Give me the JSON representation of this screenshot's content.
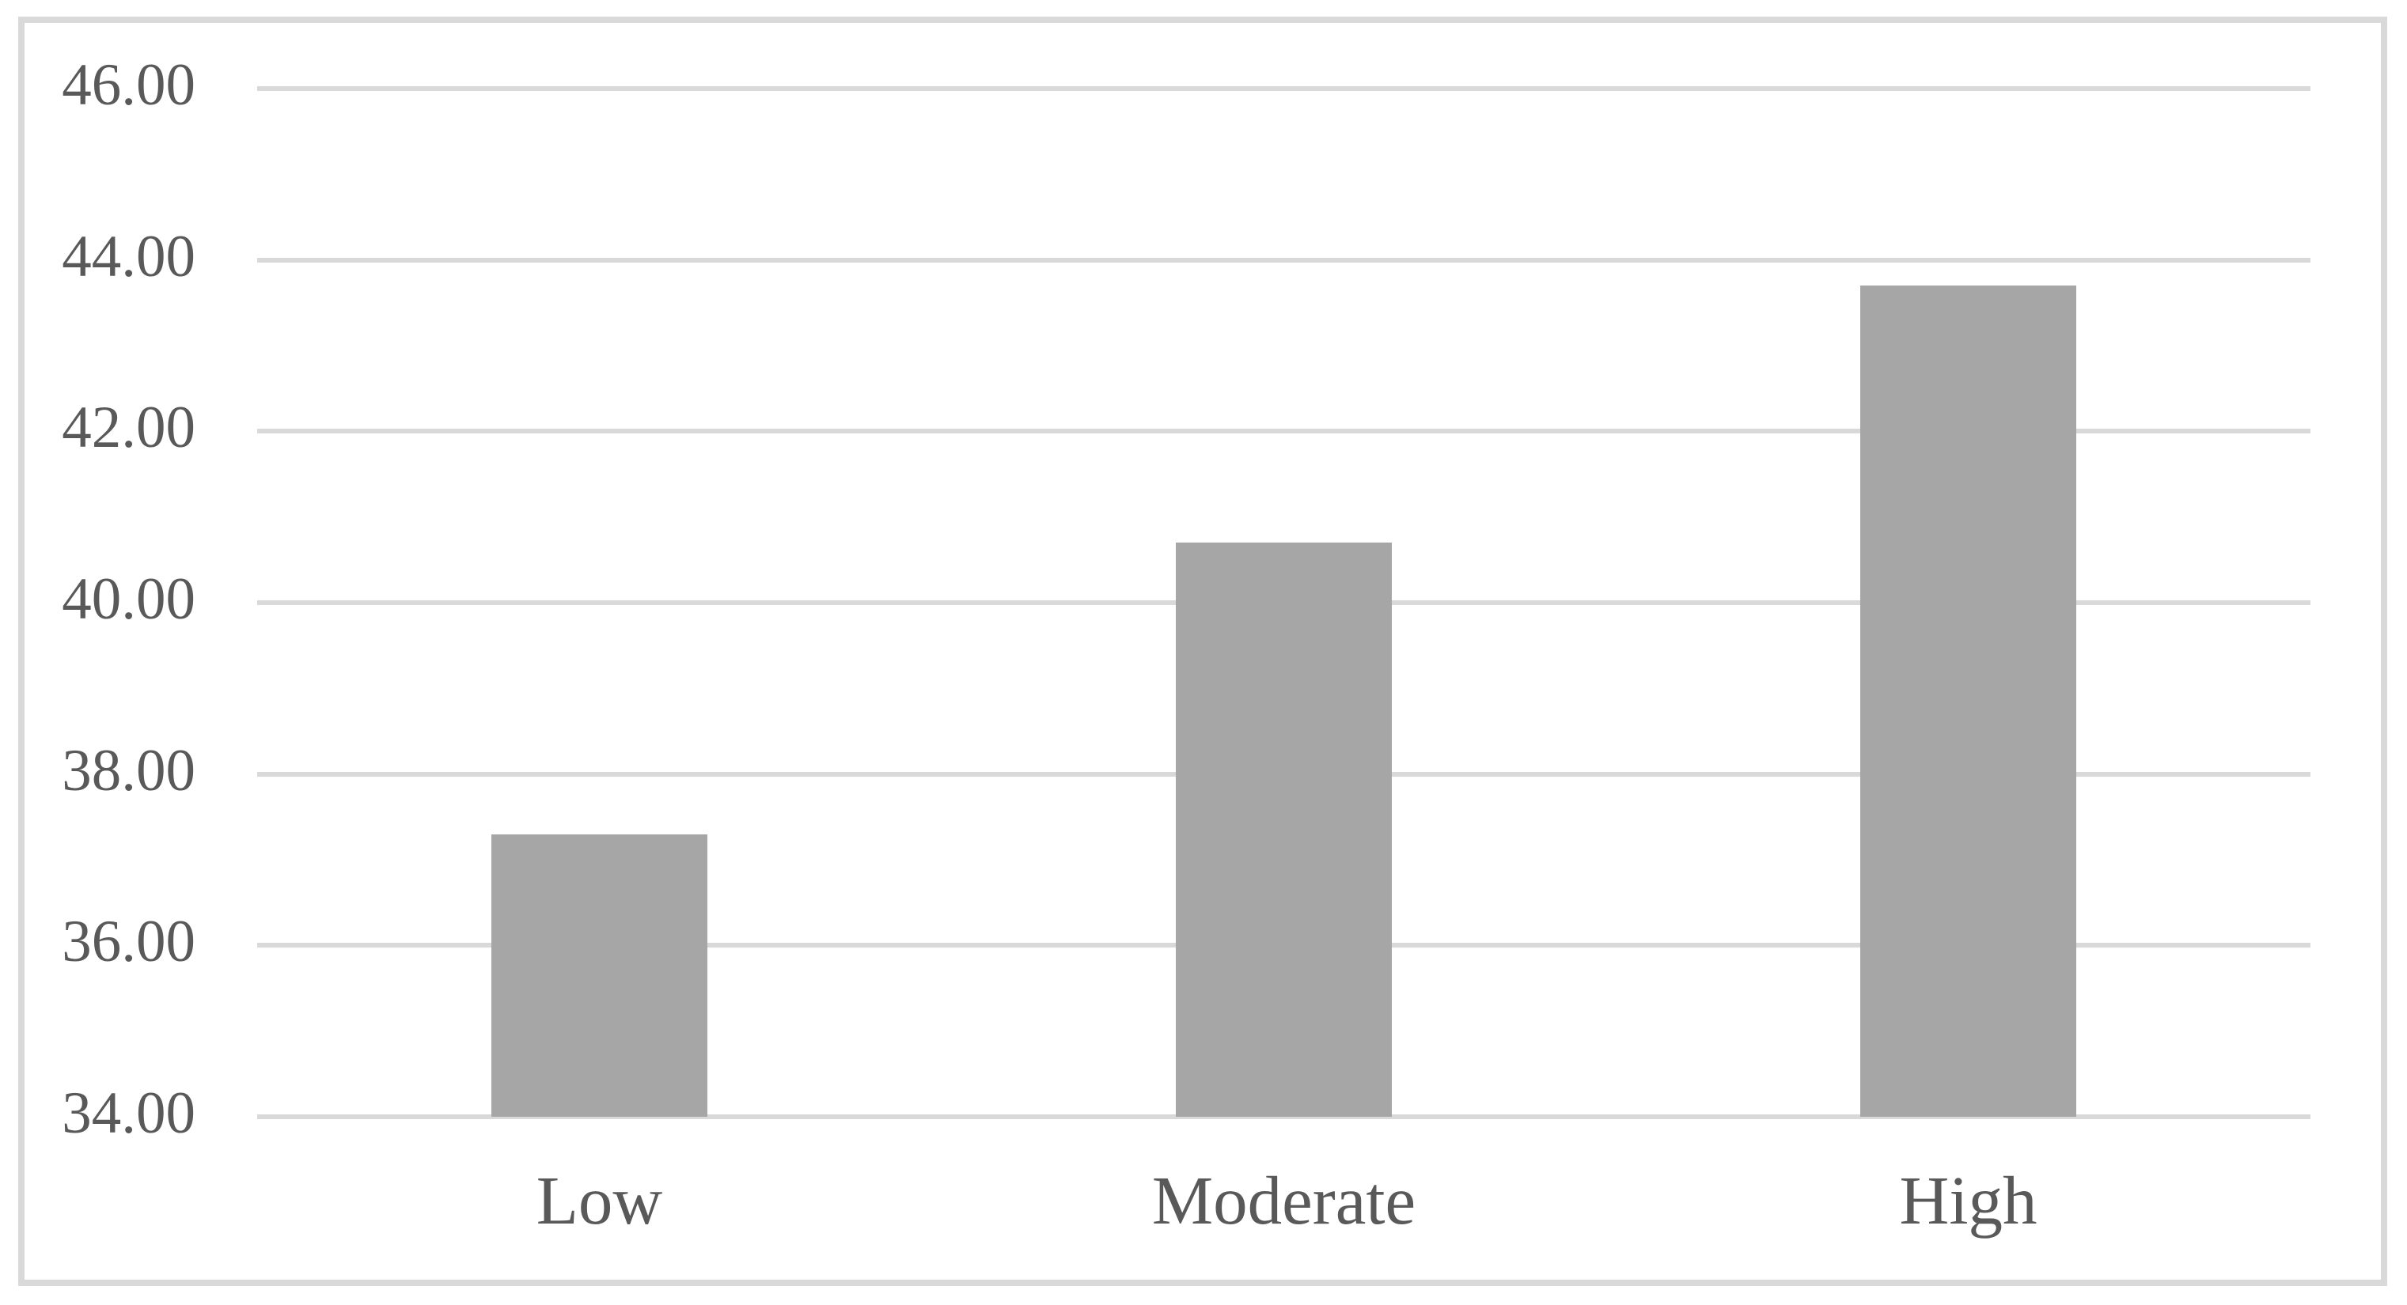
{
  "figure": {
    "background_color": "#ffffff",
    "border_color": "#d9d9d9"
  },
  "chart_data": {
    "type": "bar",
    "title": "",
    "xlabel": "",
    "ylabel": "",
    "categories": [
      "Low",
      "Moderate",
      "High"
    ],
    "values": [
      37.3,
      40.7,
      43.7
    ],
    "ylim": [
      34,
      46
    ],
    "y_tick_step": 2,
    "y_tick_labels": [
      "46.00",
      "44.00",
      "42.00",
      "40.00",
      "38.00",
      "36.00",
      "34.00"
    ],
    "grid": true,
    "legend": false,
    "bar_color": "#a6a6a6",
    "gridline_color": "#d9d9d9",
    "label_color": "#595959"
  }
}
